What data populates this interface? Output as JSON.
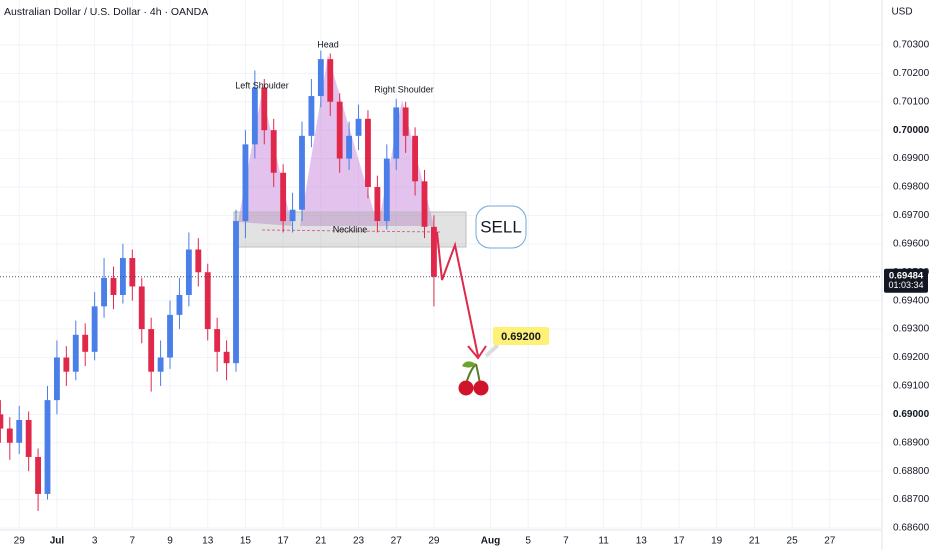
{
  "chart_data": {
    "type": "candlestick",
    "title": "Australian Dollar / U.S. Dollar · 4h · OANDA",
    "currency": "USD",
    "up_color": "#4a7ee8",
    "down_color": "#e0294a",
    "x": [
      -3,
      -2.5,
      -2,
      -1.5,
      -1,
      -0.5,
      0,
      0.5,
      1,
      1.5,
      2,
      2.5,
      3,
      3.5,
      4,
      4.5,
      5,
      5.5,
      6,
      6.5,
      7,
      7.5,
      8,
      8.5,
      9,
      9.5,
      10,
      10.5,
      11,
      11.5,
      12,
      12.5,
      13,
      13.5,
      14,
      14.5,
      15,
      15.5,
      16,
      16.5,
      17,
      17.5,
      18,
      18.5,
      19,
      19.5,
      20
    ],
    "open": [
      0.69,
      0.6895,
      0.689,
      0.6898,
      0.6885,
      0.6872,
      0.6905,
      0.692,
      0.6915,
      0.6928,
      0.6922,
      0.6938,
      0.6948,
      0.6942,
      0.6955,
      0.6945,
      0.693,
      0.6915,
      0.692,
      0.6935,
      0.6942,
      0.6958,
      0.695,
      0.693,
      0.6922,
      0.6918,
      0.6968,
      0.6995,
      0.7015,
      0.7,
      0.6985,
      0.6968,
      0.6972,
      0.6998,
      0.7012,
      0.7025,
      0.701,
      0.699,
      0.6998,
      0.7004,
      0.698,
      0.6968,
      0.699,
      0.7008,
      0.6998,
      0.6982,
      0.6966
    ],
    "high": [
      0.6905,
      0.6899,
      0.6903,
      0.6901,
      0.6888,
      0.691,
      0.6926,
      0.6924,
      0.6933,
      0.6932,
      0.6943,
      0.6955,
      0.6952,
      0.696,
      0.6958,
      0.6948,
      0.6934,
      0.6926,
      0.694,
      0.6948,
      0.6964,
      0.6962,
      0.6953,
      0.6934,
      0.6926,
      0.6972,
      0.7,
      0.7021,
      0.7018,
      0.7004,
      0.6988,
      0.6978,
      0.7003,
      0.7018,
      0.7028,
      0.7027,
      0.7013,
      0.7003,
      0.7009,
      0.7007,
      0.6984,
      0.6995,
      0.7011,
      0.701,
      0.7001,
      0.6986,
      0.697
    ],
    "low": [
      0.689,
      0.6884,
      0.6886,
      0.688,
      0.6866,
      0.687,
      0.69,
      0.691,
      0.6912,
      0.6917,
      0.6919,
      0.6934,
      0.6937,
      0.6939,
      0.694,
      0.6925,
      0.6908,
      0.691,
      0.6916,
      0.693,
      0.6938,
      0.6945,
      0.6926,
      0.6915,
      0.6912,
      0.6915,
      0.6962,
      0.699,
      0.6995,
      0.698,
      0.6964,
      0.6964,
      0.6968,
      0.6994,
      0.7008,
      0.7005,
      0.6985,
      0.6986,
      0.6993,
      0.6976,
      0.6964,
      0.6965,
      0.6986,
      0.6992,
      0.6977,
      0.6962,
      0.6938
    ],
    "close": [
      0.6895,
      0.689,
      0.6898,
      0.6885,
      0.6872,
      0.6905,
      0.692,
      0.6915,
      0.6928,
      0.6922,
      0.6938,
      0.6948,
      0.6942,
      0.6955,
      0.6945,
      0.693,
      0.6915,
      0.692,
      0.6935,
      0.6942,
      0.6958,
      0.695,
      0.693,
      0.6922,
      0.6918,
      0.6968,
      0.6995,
      0.7015,
      0.7,
      0.6985,
      0.6968,
      0.6972,
      0.6998,
      0.7012,
      0.7025,
      0.701,
      0.699,
      0.6998,
      0.7004,
      0.698,
      0.6968,
      0.699,
      0.7008,
      0.6998,
      0.6982,
      0.6966,
      0.69484
    ],
    "xlim": [
      -3.02,
      43.77
    ],
    "ylim": [
      0.68593,
      0.70458
    ],
    "xticks": [
      {
        "value": -2,
        "label": "29"
      },
      {
        "value": 0,
        "label": "Jul"
      },
      {
        "value": 2,
        "label": "3"
      },
      {
        "value": 4,
        "label": "7"
      },
      {
        "value": 6,
        "label": "9"
      },
      {
        "value": 8,
        "label": "13"
      },
      {
        "value": 10,
        "label": "15"
      },
      {
        "value": 12,
        "label": "17"
      },
      {
        "value": 14,
        "label": "21"
      },
      {
        "value": 16,
        "label": "23"
      },
      {
        "value": 18,
        "label": "27"
      },
      {
        "value": 20,
        "label": "29"
      },
      {
        "value": 23,
        "label": "Aug"
      },
      {
        "value": 25,
        "label": "5"
      },
      {
        "value": 27,
        "label": "7"
      },
      {
        "value": 29,
        "label": "11"
      },
      {
        "value": 31,
        "label": "13"
      },
      {
        "value": 33,
        "label": "17"
      },
      {
        "value": 35,
        "label": "19"
      },
      {
        "value": 37,
        "label": "21"
      },
      {
        "value": 39,
        "label": "25"
      },
      {
        "value": 41,
        "label": "27"
      }
    ],
    "yticks": [
      {
        "value": 0.703,
        "label": "0.70300"
      },
      {
        "value": 0.702,
        "label": "0.70200"
      },
      {
        "value": 0.701,
        "label": "0.70100"
      },
      {
        "value": 0.7,
        "label": "0.70000"
      },
      {
        "value": 0.699,
        "label": "0.69900"
      },
      {
        "value": 0.698,
        "label": "0.69800"
      },
      {
        "value": 0.697,
        "label": "0.69700"
      },
      {
        "value": 0.696,
        "label": "0.69600"
      },
      {
        "value": 0.695,
        "label": "0.69500"
      },
      {
        "value": 0.694,
        "label": "0.69400"
      },
      {
        "value": 0.693,
        "label": "0.69300"
      },
      {
        "value": 0.692,
        "label": "0.69200"
      },
      {
        "value": 0.691,
        "label": "0.69100"
      },
      {
        "value": 0.69,
        "label": "0.69000"
      },
      {
        "value": 0.689,
        "label": "0.68900"
      },
      {
        "value": 0.688,
        "label": "0.68800"
      },
      {
        "value": 0.687,
        "label": "0.68700"
      },
      {
        "value": 0.686,
        "label": "0.68600"
      }
    ],
    "grid": true,
    "current_price": {
      "value": 0.69484,
      "label": "0.69484"
    },
    "countdown": "01:03:34",
    "target": {
      "value": 0.692,
      "label": "0.69200"
    },
    "annotations": {
      "head": "Head",
      "left_shoulder": "Left Shoulder",
      "right_shoulder": "Right Shoulder",
      "neckline": "Neckline",
      "signal": "SELL"
    }
  }
}
